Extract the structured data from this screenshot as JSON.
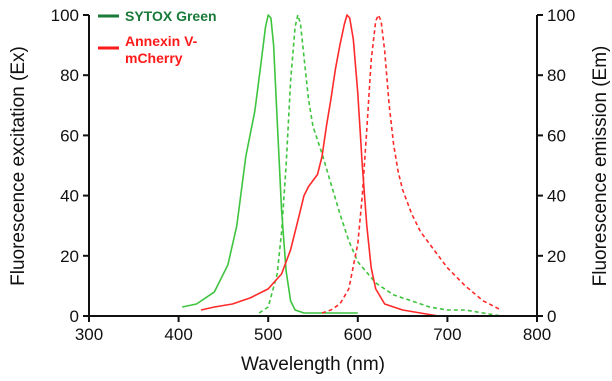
{
  "chart_data": {
    "type": "line",
    "title": "",
    "xlabel": "Wavelength (nm)",
    "ylabel_left": "Fluorescence excitation (Ex)",
    "ylabel_right": "Fluorescence emission (Em)",
    "xlim": [
      300,
      800
    ],
    "ylim": [
      0,
      100
    ],
    "x_ticks": [
      "300",
      "400",
      "500",
      "600",
      "700",
      "800"
    ],
    "y_ticks": [
      "0",
      "20",
      "40",
      "60",
      "80",
      "100"
    ],
    "grid": false,
    "legend_position": "top-left",
    "legend": [
      {
        "label": "SYTOX Green",
        "color": "#1a7a3a"
      },
      {
        "label": "Annexin V-mCherry",
        "label_lines": [
          "Annexin V-",
          "mCherry"
        ],
        "color": "#ff1a1a"
      }
    ],
    "series": [
      {
        "name": "SYTOX Green",
        "kind": "excitation",
        "dash": "solid",
        "color": "#3ec43e",
        "x": [
          404,
          420,
          440,
          455,
          465,
          475,
          485,
          492,
          497,
          500,
          503,
          506,
          510,
          515,
          520,
          525,
          530,
          540,
          600
        ],
        "y": [
          3,
          4,
          8,
          17,
          30,
          53,
          68,
          84,
          96,
          100,
          99,
          90,
          65,
          35,
          15,
          5,
          2,
          1,
          1
        ]
      },
      {
        "name": "SYTOX Green",
        "kind": "emission",
        "dash": "dashed",
        "color": "#3ec43e",
        "x": [
          490,
          500,
          510,
          515,
          520,
          525,
          530,
          533,
          536,
          540,
          545,
          550,
          560,
          570,
          580,
          590,
          600,
          620,
          640,
          660,
          680,
          700,
          720,
          740,
          760
        ],
        "y": [
          1,
          3,
          14,
          28,
          50,
          78,
          96,
          100,
          97,
          86,
          72,
          63,
          54,
          44,
          34,
          25,
          18,
          11,
          7,
          5,
          3,
          2,
          2,
          1,
          0
        ]
      },
      {
        "name": "Annexin V-mCherry",
        "kind": "excitation",
        "dash": "solid",
        "color": "#ff2a2a",
        "x": [
          425,
          440,
          460,
          480,
          500,
          515,
          525,
          535,
          540,
          545,
          550,
          555,
          560,
          565,
          570,
          575,
          580,
          585,
          588,
          591,
          595,
          600,
          605,
          610,
          615,
          620,
          630,
          650,
          670,
          690,
          700
        ],
        "y": [
          2,
          3,
          4,
          6,
          9,
          14,
          22,
          34,
          40,
          43,
          45,
          47,
          53,
          63,
          72,
          82,
          90,
          97,
          100,
          99,
          92,
          74,
          50,
          30,
          16,
          9,
          4,
          2,
          1,
          0,
          0
        ]
      },
      {
        "name": "Annexin V-mCherry",
        "kind": "emission",
        "dash": "dashed",
        "color": "#ff2a2a",
        "x": [
          560,
          570,
          580,
          590,
          600,
          605,
          610,
          615,
          620,
          623,
          626,
          630,
          635,
          640,
          645,
          650,
          660,
          670,
          680,
          690,
          700,
          720,
          740,
          760
        ],
        "y": [
          1,
          2,
          4,
          9,
          24,
          40,
          62,
          85,
          98,
          100,
          98,
          88,
          70,
          57,
          48,
          42,
          34,
          28,
          24,
          20,
          16,
          10,
          5,
          2
        ]
      }
    ]
  }
}
